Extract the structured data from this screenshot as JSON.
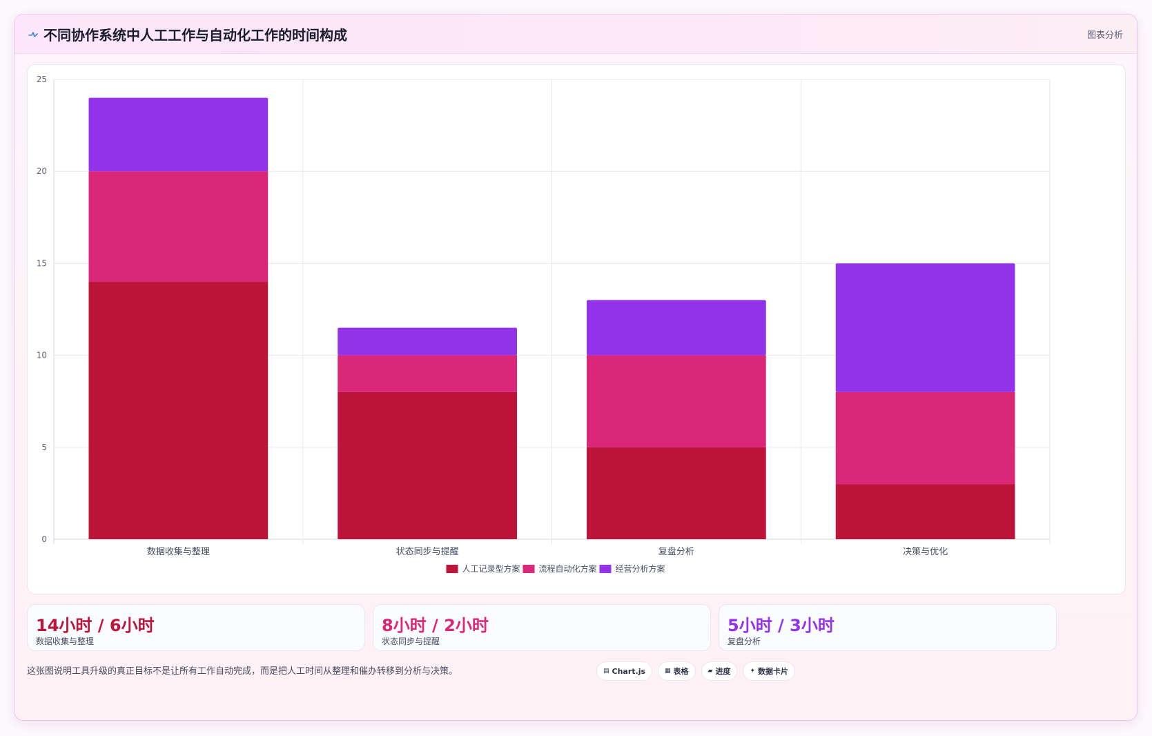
{
  "header": {
    "icon": "pulse-icon",
    "title": "不同协作系统中人工工作与自动化工作的时间构成",
    "tag": "图表分析"
  },
  "chart_data": {
    "type": "bar",
    "stacked": true,
    "categories": [
      "数据收集与整理",
      "状态同步与提醒",
      "复盘分析",
      "决策与优化"
    ],
    "series": [
      {
        "name": "人工记录型方案",
        "color": "#bd1539",
        "values": [
          14,
          8,
          5,
          3
        ]
      },
      {
        "name": "流程自动化方案",
        "color": "#db2777",
        "values": [
          6,
          2,
          5,
          5
        ]
      },
      {
        "name": "经营分析方案",
        "color": "#9333ea",
        "values": [
          4,
          1.5,
          3,
          7
        ]
      }
    ],
    "ylim": [
      0,
      25
    ],
    "yticks": [
      0,
      5,
      10,
      15,
      20,
      25
    ],
    "grid": true,
    "legend": "bottom-center"
  },
  "stats": [
    {
      "value": "14小时 / 6小时",
      "label": "数据收集与整理",
      "color": "#bd1539"
    },
    {
      "value": "8小时 / 2小时",
      "label": "状态同步与提醒",
      "color": "#db2777"
    },
    {
      "value": "5小时 / 3小时",
      "label": "复盘分析",
      "color": "#9333ea"
    }
  ],
  "footer": {
    "note": "这张图说明工具升级的真正目标不是让所有工作自动完成，而是把人工时间从整理和催办转移到分析与决策。",
    "pills": [
      {
        "icon": "chart-icon",
        "glyph": "▤",
        "label": "Chart.js"
      },
      {
        "icon": "table-icon",
        "glyph": "▦",
        "label": "表格"
      },
      {
        "icon": "progress-icon",
        "glyph": "▰",
        "label": "进度"
      },
      {
        "icon": "sparkle-icon",
        "glyph": "✦",
        "label": "数据卡片"
      }
    ]
  }
}
